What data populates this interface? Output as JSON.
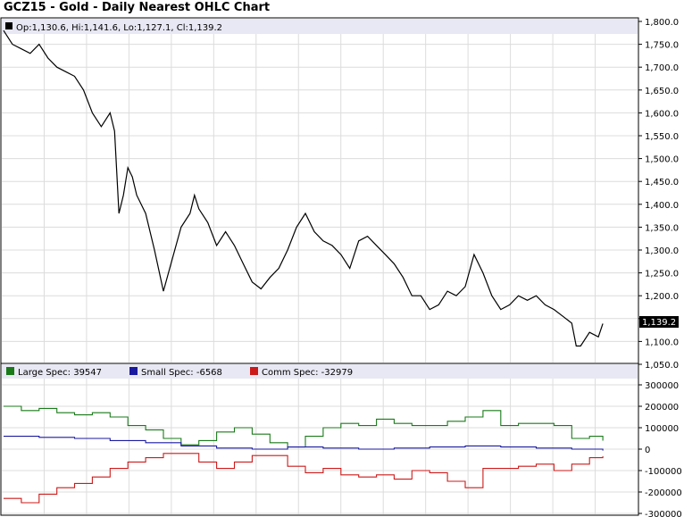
{
  "chart_data": [
    {
      "type": "line",
      "title": "GCZ15 - Gold - Daily Nearest OHLC Chart",
      "ohlc_label": "Op:1,130.6, Hi:1,141.6, Lo:1,127.1, Cl:1,139.2",
      "last_value_label": "1,139.2",
      "last_value": 1139.2,
      "ylim": [
        1050,
        1800
      ],
      "y_ticks": [
        "1,800.0",
        "1,750.0",
        "1,700.0",
        "1,650.0",
        "1,600.0",
        "1,550.0",
        "1,500.0",
        "1,450.0",
        "1,400.0",
        "1,350.0",
        "1,300.0",
        "1,250.0",
        "1,200.0",
        "1,150.0",
        "1,100.0",
        "1,050.0"
      ],
      "grid": true,
      "series": [
        {
          "color": "#000000",
          "x": [
            0,
            10,
            20,
            30,
            40,
            50,
            60,
            70,
            80,
            90,
            100,
            110,
            120,
            125,
            130,
            135,
            140,
            145,
            150,
            160,
            170,
            180,
            190,
            200,
            210,
            215,
            220,
            230,
            240,
            250,
            260,
            270,
            280,
            290,
            300,
            310,
            320,
            330,
            340,
            350,
            360,
            370,
            380,
            390,
            400,
            410,
            420,
            430,
            440,
            450,
            460,
            470,
            480,
            490,
            500,
            510,
            520,
            530,
            540,
            550,
            560,
            570,
            580,
            590,
            600,
            610,
            620,
            630,
            640,
            645,
            650,
            660,
            670,
            675
          ],
          "values": [
            1780,
            1750,
            1740,
            1730,
            1750,
            1720,
            1700,
            1690,
            1680,
            1650,
            1600,
            1570,
            1600,
            1560,
            1380,
            1420,
            1480,
            1460,
            1420,
            1380,
            1300,
            1210,
            1280,
            1350,
            1380,
            1420,
            1390,
            1360,
            1310,
            1340,
            1310,
            1270,
            1230,
            1215,
            1240,
            1260,
            1300,
            1350,
            1380,
            1340,
            1320,
            1310,
            1290,
            1260,
            1320,
            1330,
            1310,
            1290,
            1270,
            1240,
            1200,
            1200,
            1170,
            1180,
            1210,
            1200,
            1220,
            1290,
            1250,
            1200,
            1170,
            1180,
            1200,
            1190,
            1200,
            1180,
            1170,
            1155,
            1140,
            1090,
            1090,
            1120,
            1110,
            1139
          ]
        }
      ]
    },
    {
      "type": "line",
      "legend_position": "top-left",
      "ylim": [
        -300000,
        300000
      ],
      "y_ticks": [
        "300000",
        "200000",
        "100000",
        "0",
        "-100000",
        "-200000",
        "-300000"
      ],
      "grid": true,
      "series": [
        {
          "name": "Large Spec: 39547",
          "color": "#1a7a1a",
          "x": [
            0,
            20,
            40,
            60,
            80,
            100,
            120,
            140,
            160,
            180,
            200,
            220,
            240,
            260,
            280,
            300,
            320,
            340,
            360,
            380,
            400,
            420,
            440,
            460,
            480,
            500,
            520,
            540,
            560,
            580,
            600,
            620,
            640,
            660,
            675
          ],
          "values": [
            200000,
            180000,
            190000,
            170000,
            160000,
            170000,
            150000,
            110000,
            90000,
            50000,
            20000,
            40000,
            80000,
            100000,
            70000,
            30000,
            10000,
            60000,
            100000,
            120000,
            110000,
            140000,
            120000,
            110000,
            110000,
            130000,
            150000,
            180000,
            110000,
            120000,
            120000,
            110000,
            50000,
            60000,
            39547
          ]
        },
        {
          "name": "Small Spec: -6568",
          "color": "#1a1aa0",
          "x": [
            0,
            40,
            80,
            120,
            160,
            200,
            240,
            280,
            320,
            360,
            400,
            440,
            480,
            520,
            560,
            600,
            640,
            675
          ],
          "values": [
            60000,
            55000,
            50000,
            40000,
            30000,
            15000,
            5000,
            0,
            10000,
            5000,
            0,
            5000,
            10000,
            15000,
            10000,
            5000,
            0,
            -6568
          ]
        },
        {
          "name": "Comm Spec: -32979",
          "color": "#cc1a1a",
          "x": [
            0,
            20,
            40,
            60,
            80,
            100,
            120,
            140,
            160,
            180,
            200,
            220,
            240,
            260,
            280,
            300,
            320,
            340,
            360,
            380,
            400,
            420,
            440,
            460,
            480,
            500,
            520,
            540,
            560,
            580,
            600,
            620,
            640,
            660,
            675
          ],
          "values": [
            -230000,
            -250000,
            -210000,
            -180000,
            -160000,
            -130000,
            -90000,
            -60000,
            -40000,
            -20000,
            -20000,
            -60000,
            -90000,
            -60000,
            -30000,
            -30000,
            -80000,
            -110000,
            -90000,
            -120000,
            -130000,
            -120000,
            -140000,
            -100000,
            -110000,
            -150000,
            -180000,
            -90000,
            -90000,
            -80000,
            -70000,
            -100000,
            -70000,
            -40000,
            -32979
          ]
        }
      ]
    }
  ]
}
